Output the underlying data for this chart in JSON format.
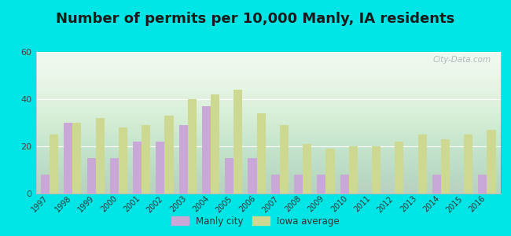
{
  "title": "Number of permits per 10,000 Manly, IA residents",
  "years": [
    1997,
    1998,
    1999,
    2000,
    2001,
    2002,
    2003,
    2004,
    2005,
    2006,
    2007,
    2008,
    2009,
    2010,
    2011,
    2012,
    2013,
    2014,
    2015,
    2016
  ],
  "manly_city": [
    8,
    30,
    15,
    15,
    22,
    22,
    29,
    37,
    15,
    15,
    8,
    8,
    8,
    8,
    0,
    0,
    0,
    8,
    0,
    8
  ],
  "iowa_avg": [
    25,
    30,
    32,
    28,
    29,
    33,
    40,
    42,
    44,
    34,
    29,
    21,
    19,
    20,
    20,
    22,
    25,
    23,
    25,
    27
  ],
  "manly_color": "#c9a8d8",
  "iowa_color": "#cdd991",
  "bg_color": "#00e5e5",
  "ylim": [
    0,
    60
  ],
  "yticks": [
    0,
    20,
    40,
    60
  ],
  "title_fontsize": 13,
  "watermark": "City-Data.com"
}
